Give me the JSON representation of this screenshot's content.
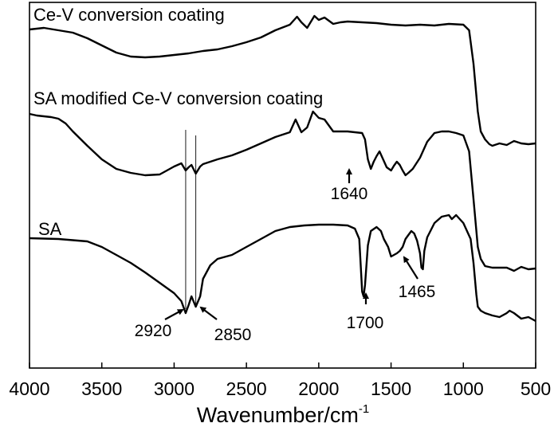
{
  "chart_data": {
    "type": "line",
    "title": "",
    "xlabel": "Wavenumber/cm",
    "xlabel_superscript": "-1",
    "ylabel": "",
    "xlim": [
      4000,
      500
    ],
    "x_reversed": true,
    "x_ticks": [
      4000,
      3500,
      3000,
      2500,
      2000,
      1500,
      1000,
      500
    ],
    "grid": false,
    "legend": "none",
    "series": [
      {
        "name": "Ce-V conversion coating",
        "points": [
          [
            4000,
            37
          ],
          [
            3900,
            35
          ],
          [
            3800,
            38
          ],
          [
            3700,
            41
          ],
          [
            3600,
            48
          ],
          [
            3500,
            57
          ],
          [
            3400,
            66
          ],
          [
            3300,
            71
          ],
          [
            3200,
            72
          ],
          [
            3100,
            71
          ],
          [
            3000,
            69
          ],
          [
            2900,
            67
          ],
          [
            2800,
            64
          ],
          [
            2700,
            62
          ],
          [
            2600,
            58
          ],
          [
            2500,
            53
          ],
          [
            2400,
            47
          ],
          [
            2300,
            38
          ],
          [
            2200,
            31
          ],
          [
            2150,
            21
          ],
          [
            2120,
            28
          ],
          [
            2080,
            35
          ],
          [
            2030,
            20
          ],
          [
            2000,
            25
          ],
          [
            1960,
            22
          ],
          [
            1900,
            30
          ],
          [
            1850,
            28
          ],
          [
            1800,
            27
          ],
          [
            1700,
            28
          ],
          [
            1600,
            29
          ],
          [
            1500,
            31
          ],
          [
            1400,
            32
          ],
          [
            1300,
            31
          ],
          [
            1200,
            32
          ],
          [
            1100,
            30
          ],
          [
            1000,
            31
          ],
          [
            960,
            38
          ],
          [
            930,
            80
          ],
          [
            900,
            140
          ],
          [
            880,
            165
          ],
          [
            850,
            175
          ],
          [
            820,
            181
          ],
          [
            800,
            183
          ],
          [
            750,
            180
          ],
          [
            700,
            182
          ],
          [
            650,
            177
          ],
          [
            600,
            180
          ],
          [
            550,
            181
          ],
          [
            500,
            180
          ]
        ]
      },
      {
        "name": "SA modified Ce-V conversion coating",
        "points": [
          [
            4000,
            143
          ],
          [
            3950,
            145
          ],
          [
            3900,
            146
          ],
          [
            3850,
            147
          ],
          [
            3800,
            149
          ],
          [
            3750,
            155
          ],
          [
            3700,
            165
          ],
          [
            3600,
            183
          ],
          [
            3500,
            200
          ],
          [
            3400,
            212
          ],
          [
            3300,
            217
          ],
          [
            3200,
            220
          ],
          [
            3100,
            219
          ],
          [
            3050,
            214
          ],
          [
            3000,
            209
          ],
          [
            2950,
            205
          ],
          [
            2920,
            214
          ],
          [
            2900,
            210
          ],
          [
            2880,
            207
          ],
          [
            2850,
            218
          ],
          [
            2820,
            209
          ],
          [
            2800,
            206
          ],
          [
            2700,
            200
          ],
          [
            2600,
            195
          ],
          [
            2500,
            188
          ],
          [
            2400,
            180
          ],
          [
            2300,
            172
          ],
          [
            2200,
            166
          ],
          [
            2160,
            150
          ],
          [
            2120,
            166
          ],
          [
            2080,
            160
          ],
          [
            2040,
            140
          ],
          [
            2000,
            148
          ],
          [
            1960,
            150
          ],
          [
            1900,
            165
          ],
          [
            1800,
            165
          ],
          [
            1750,
            166
          ],
          [
            1700,
            167
          ],
          [
            1680,
            175
          ],
          [
            1660,
            200
          ],
          [
            1640,
            212
          ],
          [
            1620,
            203
          ],
          [
            1600,
            196
          ],
          [
            1580,
            190
          ],
          [
            1560,
            198
          ],
          [
            1530,
            210
          ],
          [
            1500,
            214
          ],
          [
            1480,
            208
          ],
          [
            1460,
            203
          ],
          [
            1440,
            207
          ],
          [
            1420,
            214
          ],
          [
            1400,
            220
          ],
          [
            1380,
            217
          ],
          [
            1350,
            212
          ],
          [
            1300,
            198
          ],
          [
            1250,
            178
          ],
          [
            1200,
            167
          ],
          [
            1150,
            165
          ],
          [
            1100,
            165
          ],
          [
            1050,
            167
          ],
          [
            1000,
            170
          ],
          [
            960,
            190
          ],
          [
            930,
            250
          ],
          [
            910,
            290
          ],
          [
            900,
            310
          ],
          [
            880,
            325
          ],
          [
            850,
            334
          ],
          [
            800,
            336
          ],
          [
            700,
            336
          ],
          [
            650,
            340
          ],
          [
            600,
            335
          ],
          [
            550,
            338
          ],
          [
            500,
            337
          ]
        ]
      },
      {
        "name": "SA",
        "points": [
          [
            4000,
            299
          ],
          [
            3800,
            300
          ],
          [
            3600,
            303
          ],
          [
            3500,
            310
          ],
          [
            3400,
            320
          ],
          [
            3300,
            330
          ],
          [
            3200,
            342
          ],
          [
            3100,
            355
          ],
          [
            3000,
            368
          ],
          [
            2950,
            378
          ],
          [
            2920,
            393
          ],
          [
            2900,
            383
          ],
          [
            2880,
            372
          ],
          [
            2850,
            385
          ],
          [
            2820,
            372
          ],
          [
            2800,
            350
          ],
          [
            2750,
            333
          ],
          [
            2700,
            325
          ],
          [
            2600,
            320
          ],
          [
            2500,
            310
          ],
          [
            2400,
            300
          ],
          [
            2300,
            290
          ],
          [
            2200,
            285
          ],
          [
            2100,
            283
          ],
          [
            2000,
            282
          ],
          [
            1900,
            282
          ],
          [
            1800,
            283
          ],
          [
            1750,
            287
          ],
          [
            1720,
            300
          ],
          [
            1700,
            366
          ],
          [
            1690,
            372
          ],
          [
            1680,
            358
          ],
          [
            1660,
            308
          ],
          [
            1640,
            290
          ],
          [
            1600,
            285
          ],
          [
            1570,
            290
          ],
          [
            1550,
            300
          ],
          [
            1520,
            310
          ],
          [
            1500,
            322
          ],
          [
            1480,
            320
          ],
          [
            1460,
            318
          ],
          [
            1440,
            315
          ],
          [
            1420,
            310
          ],
          [
            1400,
            300
          ],
          [
            1380,
            295
          ],
          [
            1360,
            290
          ],
          [
            1340,
            293
          ],
          [
            1320,
            302
          ],
          [
            1300,
            318
          ],
          [
            1290,
            336
          ],
          [
            1280,
            338
          ],
          [
            1270,
            315
          ],
          [
            1250,
            298
          ],
          [
            1200,
            280
          ],
          [
            1150,
            272
          ],
          [
            1100,
            270
          ],
          [
            1080,
            275
          ],
          [
            1050,
            270
          ],
          [
            1000,
            280
          ],
          [
            950,
            300
          ],
          [
            930,
            330
          ],
          [
            910,
            370
          ],
          [
            900,
            385
          ],
          [
            880,
            390
          ],
          [
            850,
            393
          ],
          [
            800,
            396
          ],
          [
            750,
            398
          ],
          [
            700,
            393
          ],
          [
            680,
            390
          ],
          [
            650,
            393
          ],
          [
            600,
            400
          ],
          [
            550,
            398
          ],
          [
            500,
            403
          ]
        ]
      }
    ],
    "series_labels": [
      "Ce-V conversion coating",
      "SA modified Ce-V conversion coating",
      "SA"
    ],
    "guide_lines": [
      2920,
      2850
    ],
    "annotations": [
      {
        "text": "1640",
        "x": 1640,
        "y": 212
      },
      {
        "text": "2920",
        "x": 2920,
        "y": 393
      },
      {
        "text": "2850",
        "x": 2850,
        "y": 385
      },
      {
        "text": "1700",
        "x": 1700,
        "y": 372
      },
      {
        "text": "1465",
        "x": 1465,
        "y": 318
      }
    ]
  }
}
